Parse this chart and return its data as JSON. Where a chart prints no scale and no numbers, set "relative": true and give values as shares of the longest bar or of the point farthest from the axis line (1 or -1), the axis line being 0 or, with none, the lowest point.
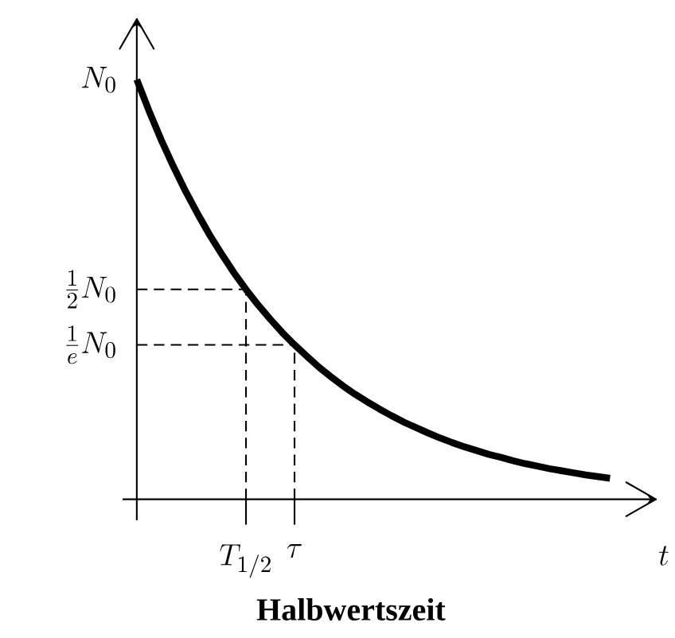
{
  "chart_data": {
    "type": "line",
    "relative": true,
    "categories": [
      null,
      null,
      null,
      null,
      null,
      null,
      null,
      null,
      null,
      "T_{1/2}",
      null,
      null,
      null,
      "\\tau",
      null,
      null,
      null,
      null,
      null,
      null,
      null,
      null,
      null,
      null,
      null,
      null,
      null,
      null,
      null,
      null,
      null,
      null,
      null,
      null,
      null,
      null,
      null,
      null,
      null,
      null
    ],
    "values": [
      1,
      0.926,
      0.857,
      0.794,
      0.735,
      0.681,
      0.63,
      0.584,
      0.54,
      0.5,
      0.463,
      0.429,
      0.397,
      0.368,
      0.341,
      0.315,
      0.292,
      0.27,
      0.25,
      0.232,
      0.215,
      0.199,
      0.184,
      0.171,
      0.158,
      0.146,
      0.135,
      0.125,
      0.116,
      0.107,
      0.1,
      0.092,
      0.085,
      0.079,
      0.073,
      0.068,
      0.063,
      0.058,
      0.054,
      0.05
    ],
    "color": "#000000",
    "xlabel": "t",
    "annotations": [
      "N_0",
      "Halbwertszeit"
    ],
    "ref_lines": [
      {
        "axis": "y",
        "value": 0.5,
        "label": "\\frac{1}{2}N_0",
        "line_style": "dashed"
      },
      {
        "axis": "y",
        "value": 0.368,
        "label": "\\frac{1}{e}N_0",
        "line_style": "dashed"
      },
      {
        "axis": "x",
        "value": "T_{1/2}",
        "line_style": "dashed"
      },
      {
        "axis": "x",
        "value": "\\tau",
        "line_style": "dashed"
      }
    ]
  }
}
